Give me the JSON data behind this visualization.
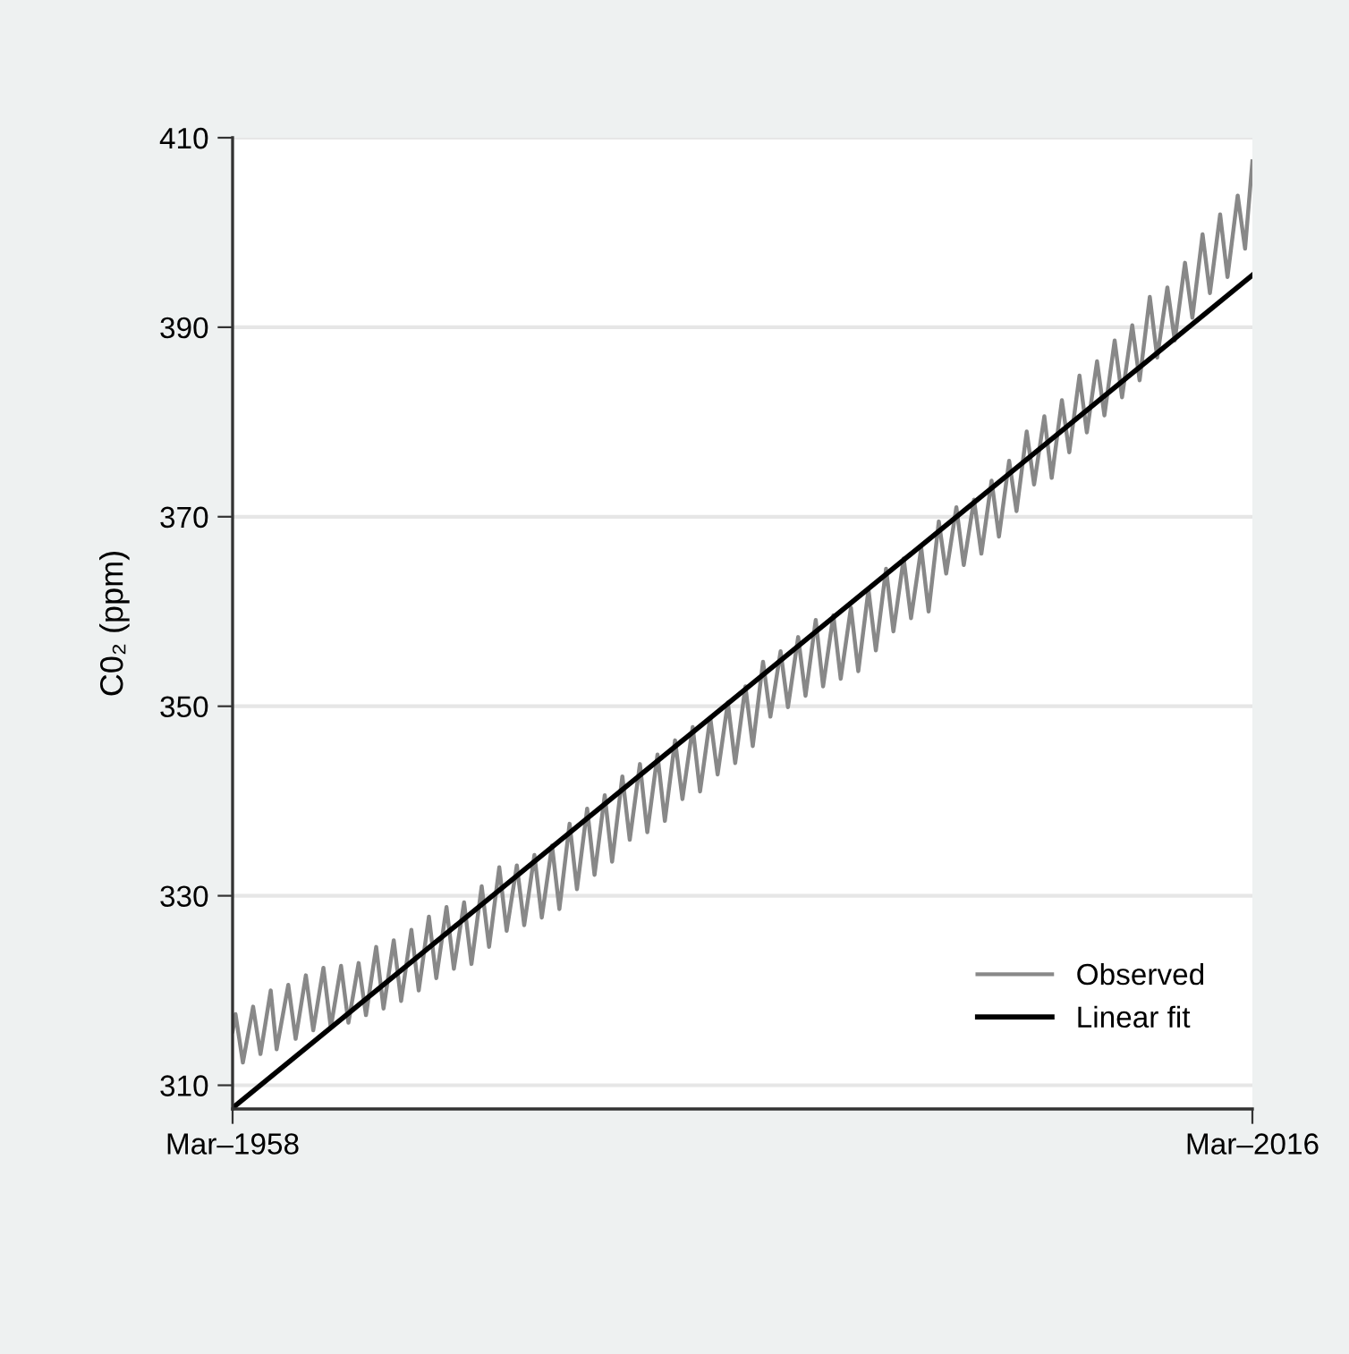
{
  "chart_data": {
    "type": "line",
    "ylabel": "C0₂ (ppm)",
    "xlim": [
      "1958-03",
      "2016-03"
    ],
    "xticks": [
      {
        "value": "1958-03",
        "label": "Mar–1958"
      },
      {
        "value": "2016-03",
        "label": "Mar–2016"
      }
    ],
    "ylim": [
      307.5,
      410
    ],
    "yticks": [
      310,
      330,
      350,
      370,
      390,
      410
    ],
    "grid": "y",
    "legend": "bottom right",
    "series": [
      {
        "name": "Observed",
        "color": "#888888",
        "x": [
          "1958-03",
          "1958-05",
          "1958-10",
          "1959-05",
          "1959-10",
          "1960-05",
          "1960-09",
          "1961-05",
          "1961-10",
          "1962-05",
          "1962-10",
          "1963-05",
          "1963-10",
          "1964-05",
          "1964-10",
          "1965-05",
          "1965-10",
          "1966-05",
          "1966-10",
          "1967-05",
          "1967-10",
          "1968-05",
          "1968-10",
          "1969-05",
          "1969-10",
          "1970-05",
          "1970-10",
          "1971-05",
          "1971-10",
          "1972-05",
          "1972-10",
          "1973-05",
          "1973-10",
          "1974-05",
          "1974-10",
          "1975-05",
          "1975-10",
          "1976-05",
          "1976-10",
          "1977-05",
          "1977-10",
          "1978-05",
          "1978-10",
          "1979-05",
          "1979-10",
          "1980-05",
          "1980-10",
          "1981-05",
          "1981-10",
          "1982-05",
          "1982-10",
          "1983-05",
          "1983-10",
          "1984-05",
          "1984-10",
          "1985-05",
          "1985-10",
          "1986-05",
          "1986-10",
          "1987-05",
          "1987-10",
          "1988-05",
          "1988-10",
          "1989-05",
          "1989-10",
          "1990-05",
          "1990-10",
          "1991-05",
          "1991-10",
          "1992-05",
          "1992-10",
          "1993-05",
          "1993-10",
          "1994-05",
          "1994-10",
          "1995-05",
          "1995-10",
          "1996-05",
          "1996-10",
          "1997-05",
          "1997-10",
          "1998-05",
          "1998-10",
          "1999-05",
          "1999-10",
          "2000-05",
          "2000-10",
          "2001-05",
          "2001-10",
          "2002-05",
          "2002-10",
          "2003-05",
          "2003-10",
          "2004-05",
          "2004-10",
          "2005-05",
          "2005-10",
          "2006-05",
          "2006-10",
          "2007-05",
          "2007-10",
          "2008-05",
          "2008-10",
          "2009-05",
          "2009-10",
          "2010-05",
          "2010-10",
          "2011-05",
          "2011-10",
          "2012-05",
          "2012-10",
          "2013-05",
          "2013-10",
          "2014-05",
          "2014-10",
          "2015-05",
          "2015-10",
          "2016-03"
        ],
        "values": [
          315.7,
          317.5,
          312.4,
          318.3,
          313.3,
          320.0,
          313.8,
          320.6,
          314.9,
          321.6,
          315.8,
          322.4,
          316.1,
          322.6,
          316.6,
          322.9,
          317.4,
          324.6,
          318.1,
          325.3,
          318.9,
          326.4,
          320.0,
          327.8,
          321.3,
          328.8,
          322.3,
          329.3,
          322.8,
          331.0,
          324.6,
          333.0,
          326.3,
          333.2,
          326.9,
          334.3,
          327.7,
          335.3,
          328.6,
          337.6,
          330.7,
          339.2,
          332.2,
          340.6,
          333.6,
          342.6,
          335.9,
          343.9,
          336.7,
          344.9,
          337.9,
          346.4,
          340.2,
          347.8,
          341.0,
          348.8,
          342.8,
          350.4,
          344.0,
          352.1,
          345.8,
          354.7,
          348.9,
          355.8,
          349.9,
          357.3,
          351.1,
          359.1,
          352.1,
          359.6,
          352.9,
          360.4,
          353.7,
          362.3,
          355.9,
          364.5,
          357.9,
          365.6,
          359.3,
          366.7,
          360.0,
          369.5,
          364.0,
          371.0,
          364.9,
          371.8,
          366.1,
          373.8,
          367.9,
          375.9,
          370.6,
          379.0,
          373.4,
          380.6,
          374.1,
          382.3,
          376.8,
          384.9,
          378.9,
          386.4,
          380.7,
          388.6,
          382.6,
          390.2,
          384.4,
          393.2,
          386.8,
          394.2,
          388.6,
          396.8,
          391.0,
          399.8,
          393.6,
          401.9,
          395.3,
          403.9,
          398.3,
          407.5
        ]
      },
      {
        "name": "Linear fit",
        "color": "#000000",
        "x": [
          "1958-03",
          "2016-03"
        ],
        "values": [
          307.6,
          395.5
        ]
      }
    ]
  }
}
